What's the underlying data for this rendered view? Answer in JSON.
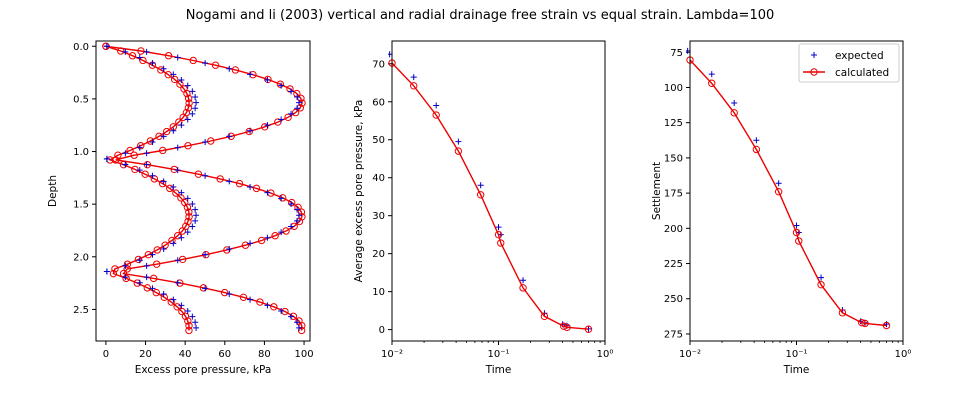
{
  "figure": {
    "title": "Nogami and li (2003) vertical and radial drainage free strain vs equal strain. Lambda=100"
  },
  "colors": {
    "expected": "#0000cc",
    "calculated": "#ee0000",
    "axes": "#000000"
  },
  "legend": {
    "expected_label": "expected",
    "calculated_label": "calculated"
  },
  "chart_data": [
    {
      "type": "line",
      "xlabel": "Excess pore pressure, kPa",
      "ylabel": "Depth",
      "xlim": [
        -5,
        103
      ],
      "ylim": [
        2.8,
        -0.05
      ],
      "y_inverted": true,
      "xticks": [
        "0",
        "20",
        "40",
        "60",
        "80",
        "100"
      ],
      "xtick_values": [
        0,
        20,
        40,
        60,
        80,
        100
      ],
      "yticks": [
        "0.0",
        "0.5",
        "1.0",
        "1.5",
        "2.0",
        "2.5"
      ],
      "ytick_values": [
        0,
        0.5,
        1.0,
        1.5,
        2.0,
        2.5
      ],
      "grid": false,
      "series": [
        {
          "marker": "o",
          "line": true,
          "profile": "lower",
          "peak": 42,
          "depth_range": [
            0,
            2.7
          ]
        },
        {
          "marker": "o",
          "line": true,
          "profile": "upper",
          "peak": 99,
          "depth_range": [
            0,
            2.7
          ]
        },
        {
          "marker": "+",
          "line": false,
          "profile": "lower",
          "peak": 45,
          "depth_range": [
            0,
            2.7
          ]
        },
        {
          "marker": "+",
          "line": false,
          "profile": "upper",
          "peak": 97,
          "depth_range": [
            0,
            2.7
          ]
        }
      ]
    },
    {
      "type": "line",
      "xlabel": "Time",
      "ylabel": "Average excess pore pressure, kPa",
      "x_scale": "log",
      "xlim": [
        0.01,
        1
      ],
      "ylim": [
        -3,
        76
      ],
      "xticks": [
        "10⁻²",
        "10⁻¹",
        "10⁰"
      ],
      "xtick_values": [
        0.01,
        0.1,
        1
      ],
      "yticks": [
        "0",
        "10",
        "20",
        "30",
        "40",
        "50",
        "60",
        "70"
      ],
      "ytick_values": [
        0,
        10,
        20,
        30,
        40,
        50,
        60,
        70
      ],
      "grid": false,
      "series": [
        {
          "marker": "+",
          "line": false,
          "x": [
            0.0095,
            0.016,
            0.026,
            0.042,
            0.068,
            0.1,
            0.105,
            0.17,
            0.27,
            0.4,
            0.44,
            0.7
          ],
          "y": [
            72.5,
            66.5,
            59,
            49.5,
            38,
            27,
            25,
            13,
            4.3,
            1.4,
            1.0,
            0.2
          ]
        },
        {
          "marker": "o",
          "line": true,
          "x": [
            0.01,
            0.016,
            0.026,
            0.042,
            0.068,
            0.1,
            0.105,
            0.17,
            0.27,
            0.41,
            0.44,
            0.7
          ],
          "y": [
            70.2,
            64.2,
            56.5,
            47,
            35.5,
            25,
            22.8,
            11,
            3.5,
            0.9,
            0.6,
            0.1
          ]
        }
      ]
    },
    {
      "type": "line",
      "xlabel": "Time",
      "ylabel": "Settlement",
      "x_scale": "log",
      "xlim": [
        0.01,
        1
      ],
      "ylim": [
        280,
        67
      ],
      "y_inverted": true,
      "xticks": [
        "10⁻²",
        "10⁻¹",
        "10⁰"
      ],
      "xtick_values": [
        0.01,
        0.1,
        1
      ],
      "yticks": [
        "75",
        "100",
        "125",
        "150",
        "175",
        "200",
        "225",
        "250",
        "275"
      ],
      "ytick_values": [
        75,
        100,
        125,
        150,
        175,
        200,
        225,
        250,
        275
      ],
      "grid": false,
      "legend_position": "top-right",
      "series": [
        {
          "name": "expected",
          "marker": "+",
          "line": false,
          "x": [
            0.0095,
            0.016,
            0.026,
            0.042,
            0.068,
            0.1,
            0.105,
            0.17,
            0.27,
            0.4,
            0.44,
            0.7
          ],
          "y": [
            74,
            90.5,
            111,
            137.5,
            168,
            198,
            203,
            235,
            258,
            266,
            267,
            268
          ]
        },
        {
          "name": "calculated",
          "marker": "o",
          "line": true,
          "x": [
            0.01,
            0.016,
            0.026,
            0.042,
            0.068,
            0.1,
            0.105,
            0.17,
            0.27,
            0.41,
            0.44,
            0.7
          ],
          "y": [
            80.5,
            97,
            118,
            144,
            174,
            203,
            209,
            240,
            260,
            267,
            267.5,
            269
          ]
        }
      ]
    }
  ]
}
